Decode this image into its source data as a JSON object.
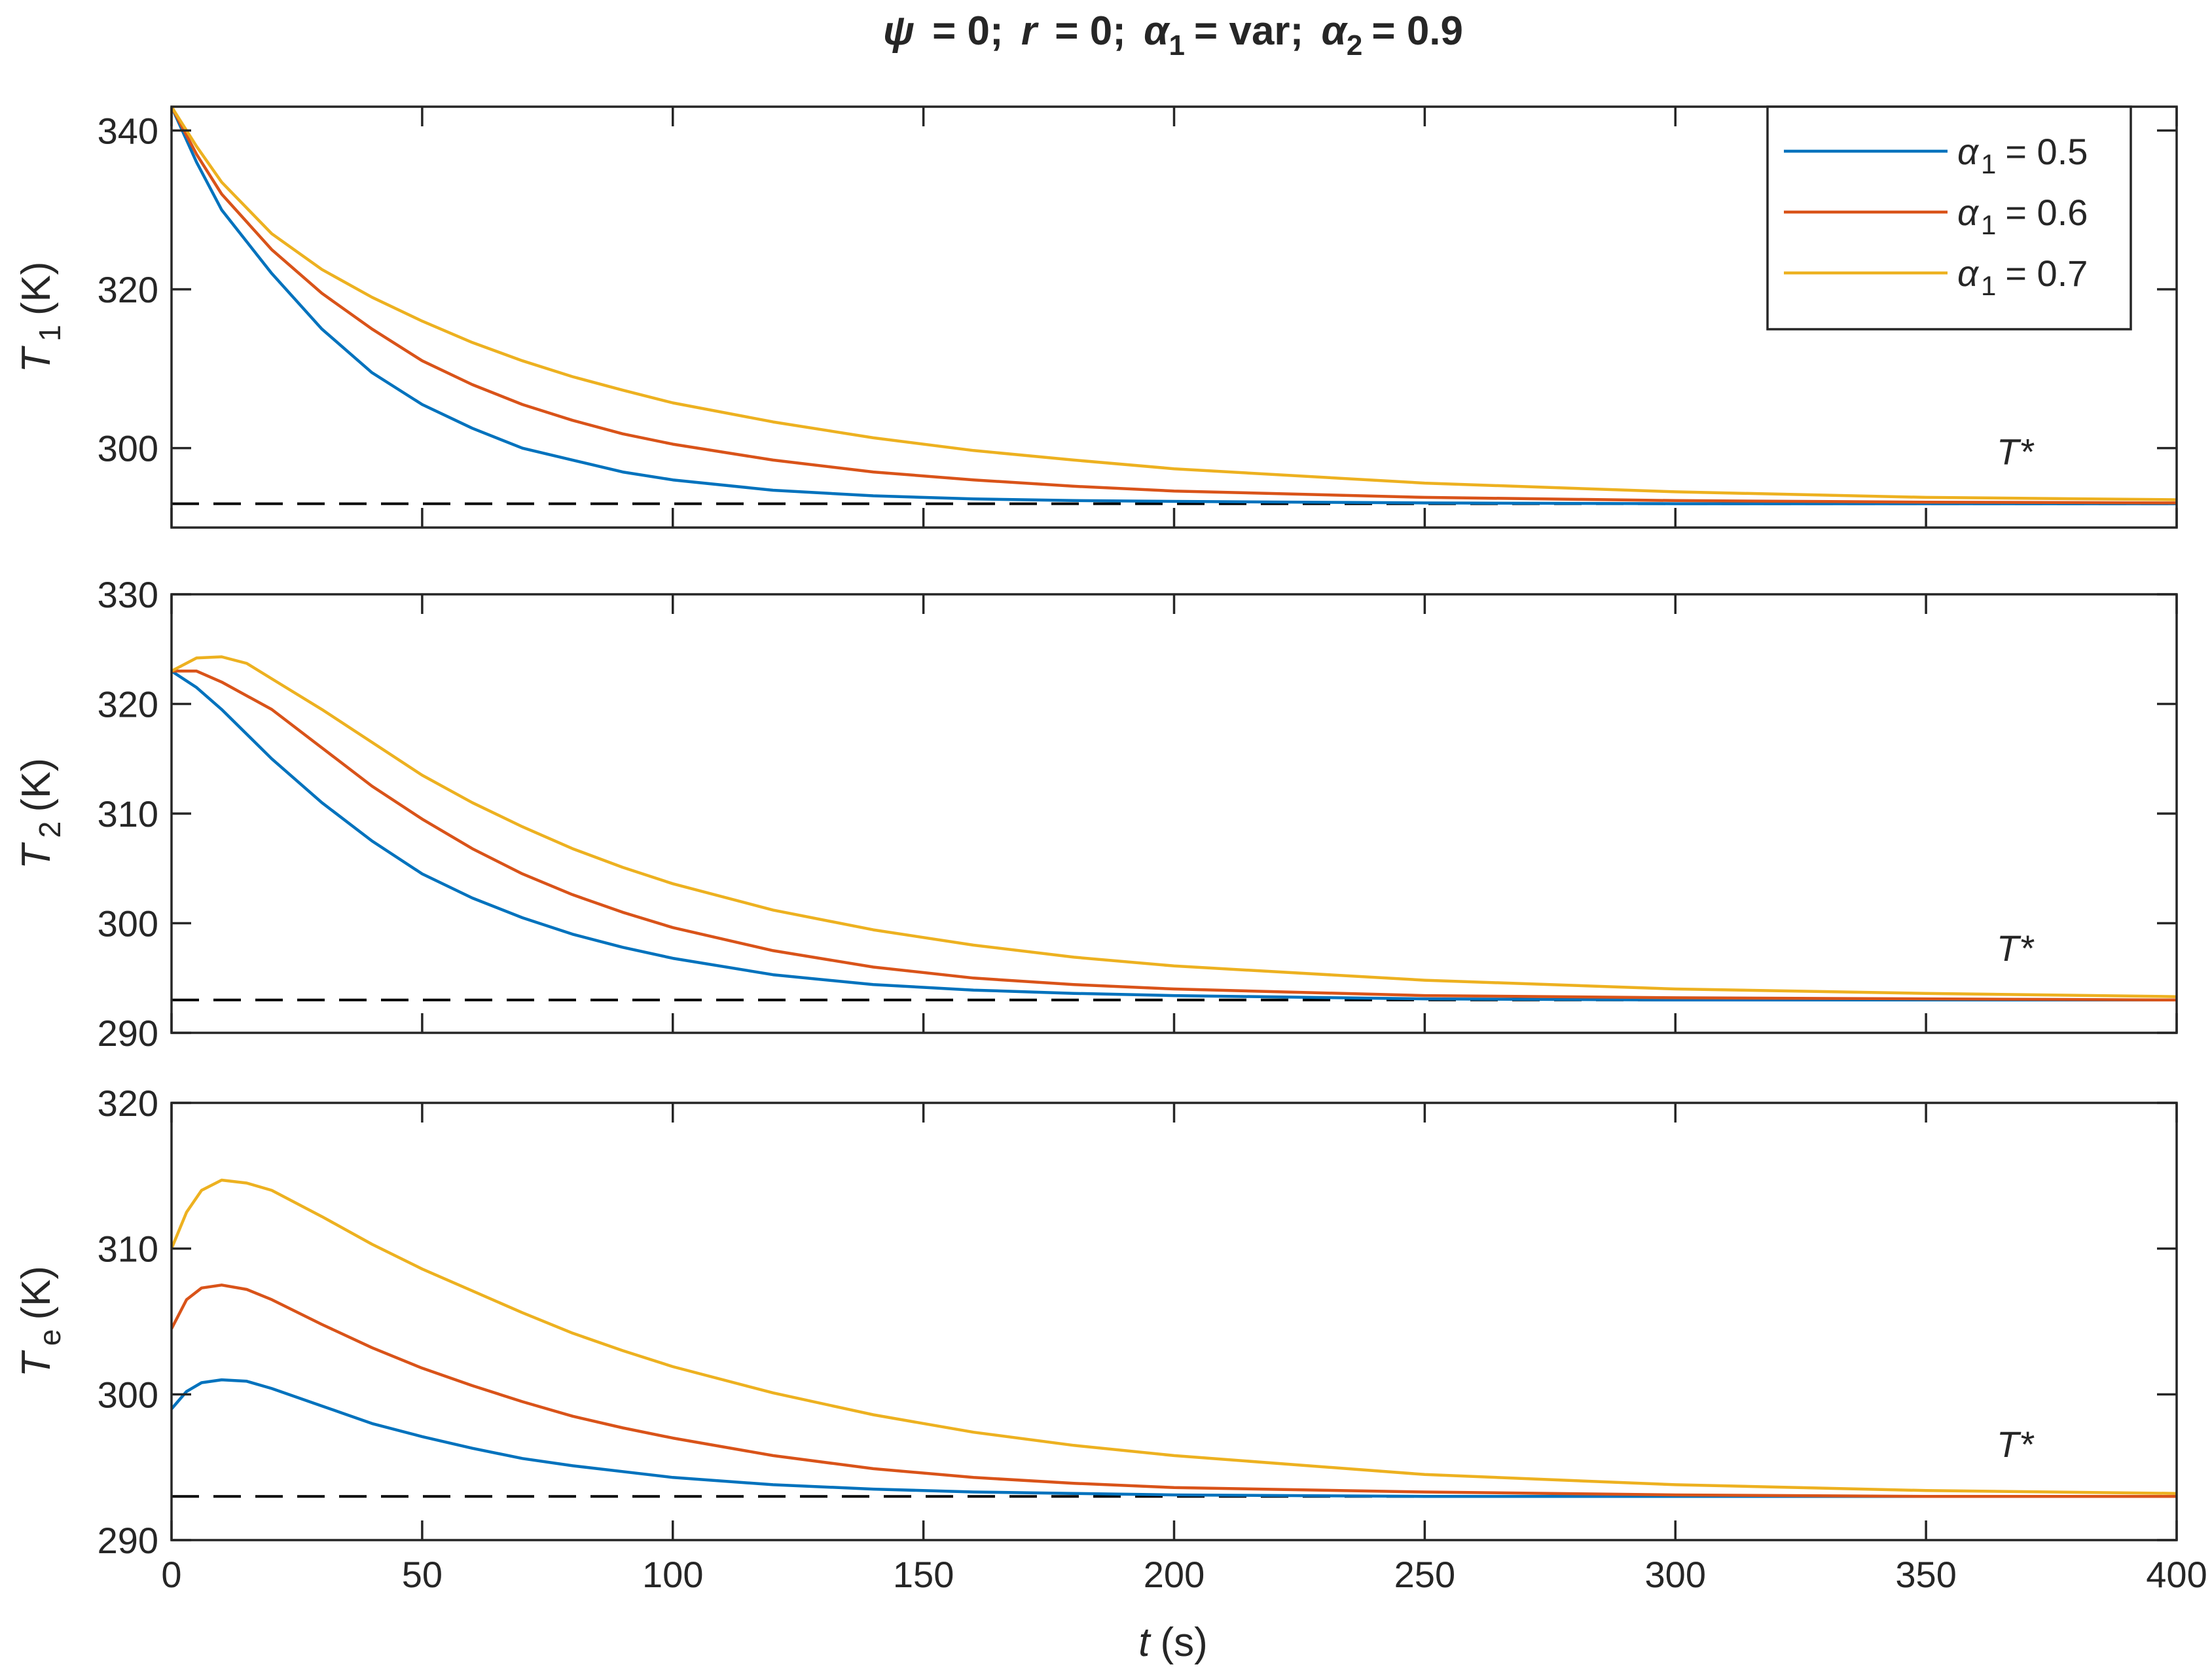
{
  "chart_data": {
    "type": "line",
    "title": {
      "psi": "ψ",
      "r": "r",
      "alpha": "α",
      "sub1": "1",
      "sub2": "2",
      "var_text": "var",
      "alpha2_value": "0.9",
      "eq": "= 0;",
      "full": "ψ = 0; r = 0; α1 = var; α2 = 0.9"
    },
    "xlabel": {
      "var": "t",
      "unit": "(s)"
    },
    "xlim": [
      0,
      400
    ],
    "xticks": [
      0,
      50,
      100,
      150,
      200,
      250,
      300,
      350,
      400
    ],
    "legend": {
      "position": "top-right",
      "entries": [
        {
          "symbol": "α",
          "sub": "1",
          "text": "= 0.5",
          "color": "#0072BD"
        },
        {
          "symbol": "α",
          "sub": "1",
          "text": "= 0.6",
          "color": "#D95319"
        },
        {
          "symbol": "α",
          "sub": "1",
          "text": "= 0.7",
          "color": "#EDB120"
        }
      ]
    },
    "reference_line": {
      "label": "T*",
      "value": 293,
      "style": "dashed",
      "color": "#000000"
    },
    "panels": [
      {
        "ylabel": {
          "var": "T",
          "sub": "1",
          "unit": "(K)"
        },
        "ylim": [
          290,
          343
        ],
        "yticks": [
          300,
          320,
          340
        ],
        "series": [
          {
            "name": "α1 = 0.5",
            "color": "#0072BD",
            "x": [
              0,
              5,
              10,
              20,
              30,
              40,
              50,
              60,
              70,
              80,
              90,
              100,
              120,
              140,
              160,
              180,
              200,
              250,
              300,
              350,
              400
            ],
            "values": [
              343,
              336,
              330,
              322,
              315,
              309.5,
              305.5,
              302.5,
              300,
              298.5,
              297,
              296,
              294.7,
              294,
              293.6,
              293.4,
              293.3,
              293.1,
              293,
              293,
              293
            ]
          },
          {
            "name": "α1 = 0.6",
            "color": "#D95319",
            "x": [
              0,
              5,
              10,
              20,
              30,
              40,
              50,
              60,
              70,
              80,
              90,
              100,
              120,
              140,
              160,
              180,
              200,
              250,
              300,
              350,
              400
            ],
            "values": [
              343,
              337,
              332,
              325,
              319.5,
              315,
              311,
              308,
              305.5,
              303.5,
              301.8,
              300.5,
              298.5,
              297,
              296,
              295.2,
              294.6,
              293.8,
              293.4,
              293.2,
              293.1
            ]
          },
          {
            "name": "α1 = 0.7",
            "color": "#EDB120",
            "x": [
              0,
              5,
              10,
              20,
              30,
              40,
              50,
              60,
              70,
              80,
              90,
              100,
              120,
              140,
              160,
              180,
              200,
              250,
              300,
              350,
              400
            ],
            "values": [
              343,
              338,
              333.5,
              327,
              322.5,
              319,
              316,
              313.3,
              311,
              309,
              307.3,
              305.7,
              303.3,
              301.3,
              299.7,
              298.5,
              297.4,
              295.6,
              294.5,
              293.8,
              293.5
            ]
          }
        ]
      },
      {
        "ylabel": {
          "var": "T",
          "sub": "2",
          "unit": "(K)"
        },
        "ylim": [
          290,
          330
        ],
        "yticks": [
          290,
          300,
          310,
          320,
          330
        ],
        "series": [
          {
            "name": "α1 = 0.5",
            "color": "#0072BD",
            "x": [
              0,
              5,
              10,
              20,
              30,
              40,
              50,
              60,
              70,
              80,
              90,
              100,
              120,
              140,
              160,
              180,
              200,
              250,
              300,
              350,
              400
            ],
            "values": [
              323,
              321.5,
              319.5,
              315,
              311,
              307.5,
              304.5,
              302.3,
              300.5,
              299,
              297.8,
              296.8,
              295.3,
              294.4,
              293.9,
              293.6,
              293.4,
              293.1,
              293,
              293,
              293
            ]
          },
          {
            "name": "α1 = 0.6",
            "color": "#D95319",
            "x": [
              0,
              5,
              10,
              20,
              30,
              40,
              50,
              60,
              70,
              80,
              90,
              100,
              120,
              140,
              160,
              180,
              200,
              250,
              300,
              350,
              400
            ],
            "values": [
              323,
              323,
              322,
              319.5,
              316,
              312.5,
              309.5,
              306.8,
              304.5,
              302.6,
              301,
              299.6,
              297.5,
              296,
              295,
              294.4,
              294,
              293.4,
              293.2,
              293.1,
              293
            ]
          },
          {
            "name": "α1 = 0.7",
            "color": "#EDB120",
            "x": [
              0,
              5,
              10,
              15,
              20,
              30,
              40,
              50,
              60,
              70,
              80,
              90,
              100,
              120,
              140,
              160,
              180,
              200,
              250,
              300,
              350,
              400
            ],
            "values": [
              323,
              324.2,
              324.3,
              323.7,
              322.3,
              319.5,
              316.5,
              313.5,
              311,
              308.8,
              306.8,
              305.1,
              303.6,
              301.2,
              299.4,
              298,
              296.9,
              296.1,
              294.8,
              294,
              293.6,
              293.3
            ]
          }
        ]
      },
      {
        "ylabel": {
          "var": "T",
          "sub": "e",
          "unit": "(K)"
        },
        "ylim": [
          290,
          320
        ],
        "yticks": [
          290,
          300,
          310,
          320
        ],
        "series": [
          {
            "name": "α1 = 0.5",
            "color": "#0072BD",
            "x": [
              0,
              3,
              6,
              10,
              15,
              20,
              30,
              40,
              50,
              60,
              70,
              80,
              90,
              100,
              120,
              140,
              160,
              180,
              200,
              250,
              300,
              350,
              400
            ],
            "values": [
              299,
              300.2,
              300.8,
              301,
              300.9,
              300.4,
              299.2,
              298,
              297.1,
              296.3,
              295.6,
              295.1,
              294.7,
              294.3,
              293.8,
              293.5,
              293.3,
              293.2,
              293.1,
              293,
              293,
              293,
              293
            ]
          },
          {
            "name": "α1 = 0.6",
            "color": "#D95319",
            "x": [
              0,
              3,
              6,
              10,
              15,
              20,
              30,
              40,
              50,
              60,
              70,
              80,
              90,
              100,
              120,
              140,
              160,
              180,
              200,
              250,
              300,
              350,
              400
            ],
            "values": [
              304.5,
              306.5,
              307.3,
              307.5,
              307.2,
              306.5,
              304.8,
              303.2,
              301.8,
              300.6,
              299.5,
              298.5,
              297.7,
              297,
              295.8,
              294.9,
              294.3,
              293.9,
              293.6,
              293.3,
              293.1,
              293,
              293
            ]
          },
          {
            "name": "α1 = 0.7",
            "color": "#EDB120",
            "x": [
              0,
              3,
              6,
              10,
              15,
              20,
              30,
              40,
              50,
              60,
              70,
              80,
              90,
              100,
              120,
              140,
              160,
              180,
              200,
              250,
              300,
              350,
              400
            ],
            "values": [
              310,
              312.5,
              314,
              314.7,
              314.5,
              314,
              312.2,
              310.3,
              308.6,
              307.1,
              305.6,
              304.2,
              303,
              301.9,
              300.1,
              298.6,
              297.4,
              296.5,
              295.8,
              294.5,
              293.8,
              293.4,
              293.2
            ]
          }
        ]
      }
    ]
  }
}
